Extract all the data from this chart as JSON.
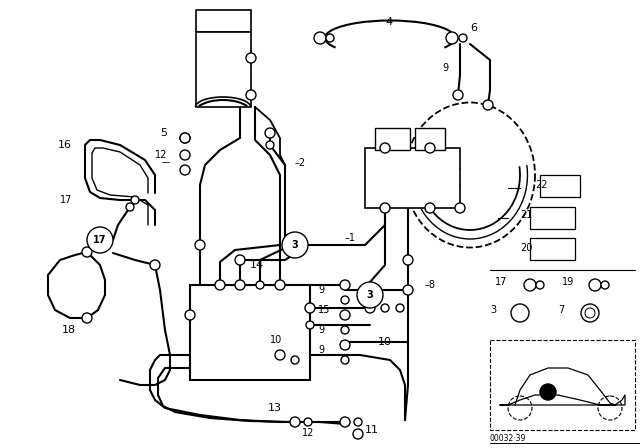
{
  "bg_color": "#ffffff",
  "line_color": "#000000",
  "fig_width": 6.4,
  "fig_height": 4.48,
  "dpi": 100,
  "watermark": "00032·39"
}
